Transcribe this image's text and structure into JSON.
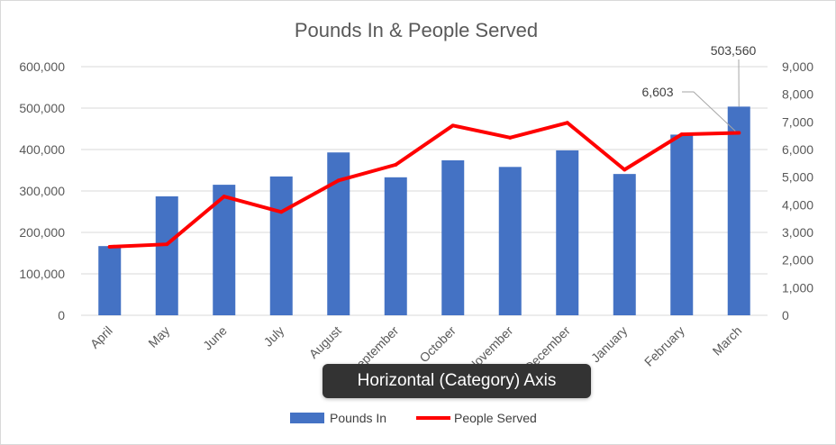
{
  "chart_data": {
    "type": "bar",
    "title": "Pounds In & People Served",
    "categories": [
      "April",
      "May",
      "June",
      "July",
      "August",
      "September",
      "October",
      "November",
      "December",
      "January",
      "February",
      "March"
    ],
    "series": [
      {
        "name": "Pounds In",
        "type": "bar",
        "axis": "left",
        "color": "#4472C4",
        "values": [
          167000,
          287000,
          315000,
          335000,
          393000,
          333000,
          374000,
          358000,
          398000,
          341000,
          436000,
          503560
        ]
      },
      {
        "name": "People Served",
        "type": "line",
        "axis": "right",
        "color": "#FF0000",
        "values": [
          2480,
          2570,
          4300,
          3740,
          4880,
          5450,
          6870,
          6430,
          6970,
          5270,
          6550,
          6603
        ]
      }
    ],
    "y_left": {
      "ylim": [
        0,
        600000
      ],
      "ticks": [
        "0",
        "100,000",
        "200,000",
        "300,000",
        "400,000",
        "500,000",
        "600,000"
      ]
    },
    "y_right": {
      "ylim": [
        0,
        9000
      ],
      "ticks": [
        "0",
        "1,000",
        "2,000",
        "3,000",
        "4,000",
        "5,000",
        "6,000",
        "7,000",
        "8,000",
        "9,000"
      ]
    },
    "annotations": [
      {
        "text": "503,560",
        "series": "Pounds In",
        "category": "March"
      },
      {
        "text": "6,603",
        "series": "People Served",
        "category": "March"
      }
    ],
    "grid": true,
    "legend": "bottom-center"
  },
  "tooltip": {
    "text": "Horizontal (Category) Axis"
  },
  "colors": {
    "gridline": "#D9D9D9",
    "text": "#595959"
  }
}
